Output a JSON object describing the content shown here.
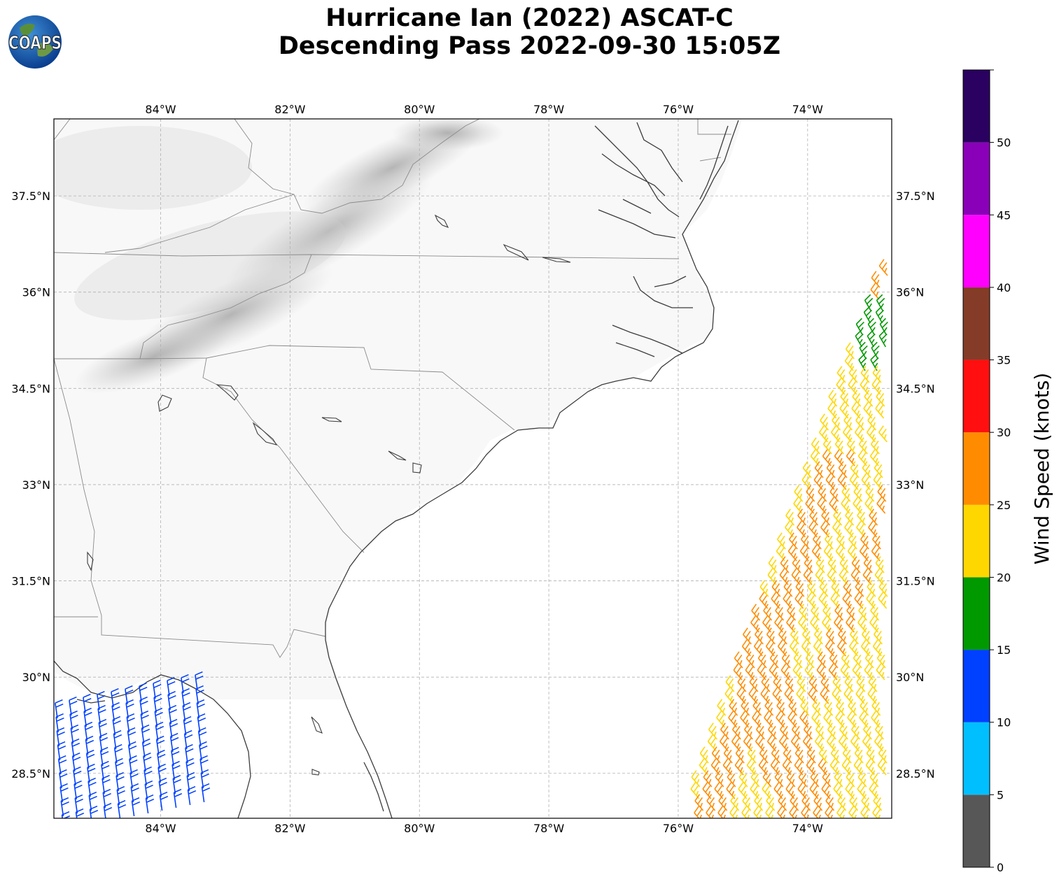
{
  "title": {
    "line1": "Hurricane Ian (2022) ASCAT-C",
    "line2": "Descending Pass 2022-09-30 15:05Z"
  },
  "logo": {
    "text": "COAPS",
    "icon": "globe-logo-icon"
  },
  "map": {
    "lon_range": [
      -85.65,
      -72.7
    ],
    "lat_range": [
      27.8,
      38.7
    ],
    "lon_ticks": [
      {
        "value": -84,
        "label": "84°W"
      },
      {
        "value": -82,
        "label": "82°W"
      },
      {
        "value": -80,
        "label": "80°W"
      },
      {
        "value": -78,
        "label": "78°W"
      },
      {
        "value": -76,
        "label": "76°W"
      },
      {
        "value": -74,
        "label": "74°W"
      }
    ],
    "lat_ticks": [
      {
        "value": 37.5,
        "label": "37.5°N"
      },
      {
        "value": 36,
        "label": "36°N"
      },
      {
        "value": 34.5,
        "label": "34.5°N"
      },
      {
        "value": 33,
        "label": "33°N"
      },
      {
        "value": 31.5,
        "label": "31.5°N"
      },
      {
        "value": 30,
        "label": "30°N"
      },
      {
        "value": 28.5,
        "label": "28.5°N"
      }
    ],
    "gridlines": true
  },
  "colorbar": {
    "label": "Wind Speed (knots)",
    "ticks": [
      "0",
      "5",
      "10",
      "15",
      "20",
      "25",
      "30",
      "35",
      "40",
      "45",
      "50"
    ],
    "bins": [
      {
        "from": 0,
        "to": 5,
        "color": "#575757"
      },
      {
        "from": 5,
        "to": 10,
        "color": "#00bfff"
      },
      {
        "from": 10,
        "to": 15,
        "color": "#0040ff"
      },
      {
        "from": 15,
        "to": 20,
        "color": "#009900"
      },
      {
        "from": 20,
        "to": 25,
        "color": "#ffd700"
      },
      {
        "from": 25,
        "to": 30,
        "color": "#ff8c00"
      },
      {
        "from": 30,
        "to": 35,
        "color": "#ff0f0f"
      },
      {
        "from": 35,
        "to": 40,
        "color": "#843c29"
      },
      {
        "from": 40,
        "to": 45,
        "color": "#ff00ff"
      },
      {
        "from": 45,
        "to": 50,
        "color": "#8a00b8"
      },
      {
        "from": 50,
        "to": 55,
        "color": "#2a0060"
      }
    ]
  },
  "wind_regions": [
    {
      "name": "gulf-winds",
      "color": "#0040ff",
      "speed_band": "10-15"
    },
    {
      "name": "atlantic-winds-yellow",
      "color": "#ffd700",
      "speed_band": "20-25"
    },
    {
      "name": "atlantic-winds-orange",
      "color": "#ff8c00",
      "speed_band": "25-30"
    },
    {
      "name": "atlantic-winds-green",
      "color": "#009900",
      "speed_band": "15-20"
    }
  ]
}
